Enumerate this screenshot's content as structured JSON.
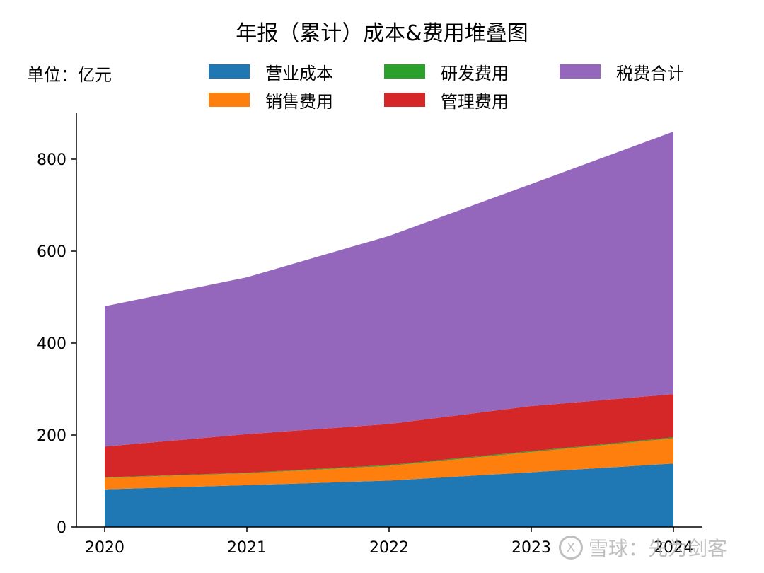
{
  "chart_data": {
    "type": "area",
    "stacked": true,
    "title": "年报（累计）成本&费用堆叠图",
    "unit_label": "单位：亿元",
    "x": [
      "2020",
      "2021",
      "2022",
      "2023",
      "2024"
    ],
    "ylim": [
      0,
      900
    ],
    "yticks": [
      0,
      200,
      400,
      600,
      800
    ],
    "grid": false,
    "legend_position": "top",
    "series": [
      {
        "name": "营业成本",
        "color": "#1f77b4",
        "values": [
          82,
          91,
          101,
          119,
          138
        ]
      },
      {
        "name": "销售费用",
        "color": "#ff7f0e",
        "values": [
          25,
          26,
          32,
          44,
          55
        ]
      },
      {
        "name": "研发费用",
        "color": "#2ca02c",
        "values": [
          1,
          1,
          2,
          2,
          2
        ]
      },
      {
        "name": "管理费用",
        "color": "#d62728",
        "values": [
          67,
          84,
          89,
          98,
          94
        ]
      },
      {
        "name": "税费合计",
        "color": "#9467bd",
        "values": [
          305,
          341,
          409,
          483,
          571
        ]
      }
    ]
  },
  "watermark": {
    "logo_text": "X",
    "text": "雪球：先为剑客"
  }
}
